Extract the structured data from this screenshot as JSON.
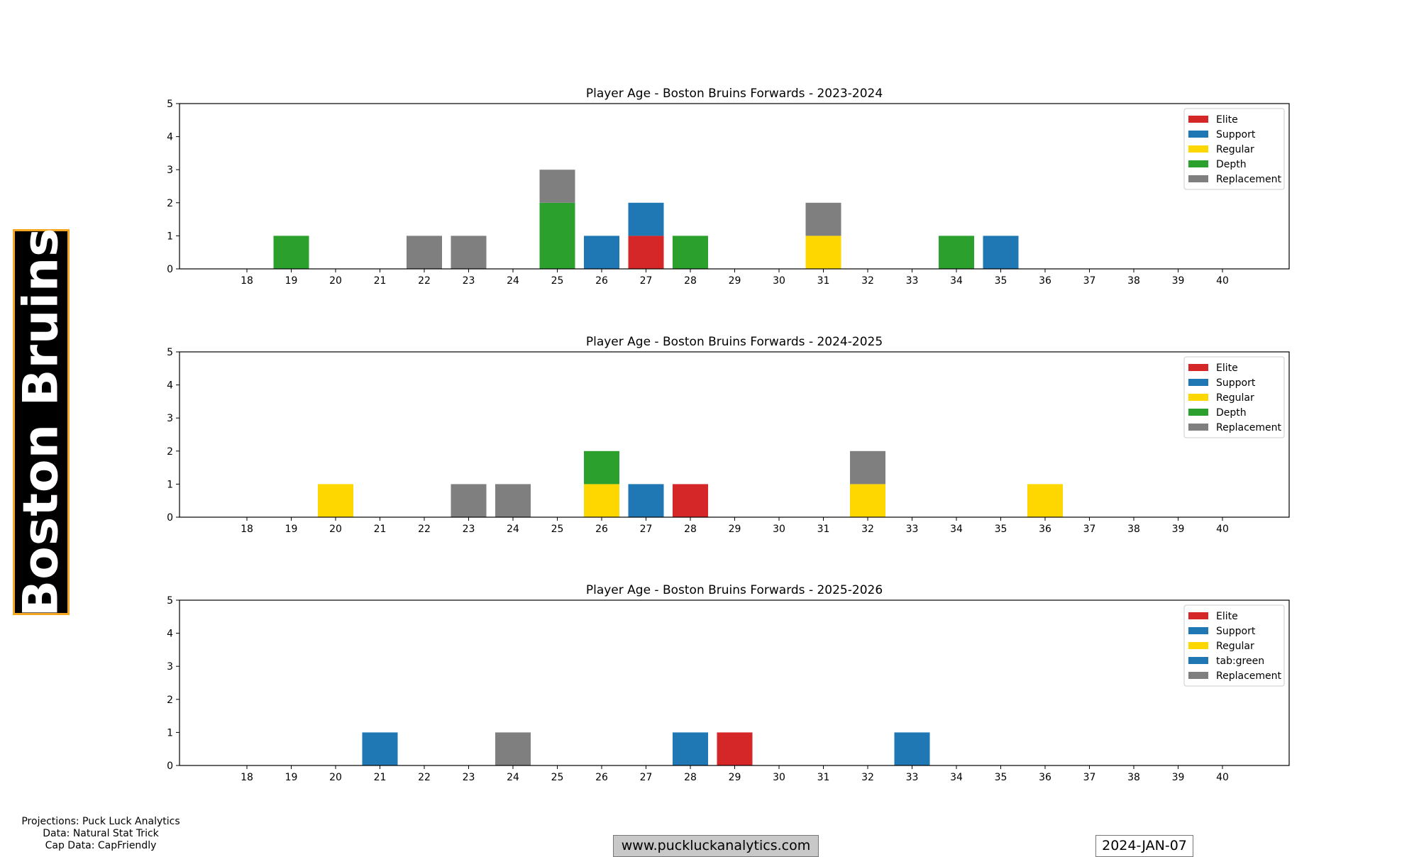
{
  "team_name": "Boston Bruins",
  "footer": {
    "projections": "Projections: Puck Luck Analytics",
    "data_source": "Data: Natural Stat Trick",
    "cap_data": "Cap Data: CapFriendly",
    "website": "www.puckluckanalytics.com",
    "date": "2024-JAN-07"
  },
  "chart_data": [
    {
      "type": "bar",
      "stacked": true,
      "title": "Player Age - Boston Bruins Forwards - 2023-2024",
      "xlabel": "",
      "ylabel": "",
      "categories": [
        18,
        19,
        20,
        21,
        22,
        23,
        24,
        25,
        26,
        27,
        28,
        29,
        30,
        31,
        32,
        33,
        34,
        35,
        36,
        37,
        38,
        39,
        40
      ],
      "ylim": [
        0,
        5
      ],
      "yticks": [
        0,
        1,
        2,
        3,
        4,
        5
      ],
      "legend_position": "top-right",
      "series": [
        {
          "name": "Elite",
          "color": "#d62728",
          "values": [
            0,
            0,
            0,
            0,
            0,
            0,
            0,
            0,
            0,
            1,
            0,
            0,
            0,
            0,
            0,
            0,
            0,
            0,
            0,
            0,
            0,
            0,
            0
          ]
        },
        {
          "name": "Support",
          "color": "#1f77b4",
          "values": [
            0,
            0,
            0,
            0,
            0,
            0,
            0,
            0,
            1,
            1,
            0,
            0,
            0,
            0,
            0,
            0,
            0,
            1,
            0,
            0,
            0,
            0,
            0
          ]
        },
        {
          "name": "Regular",
          "color": "#ffd700",
          "values": [
            0,
            0,
            0,
            0,
            0,
            0,
            0,
            0,
            0,
            0,
            0,
            0,
            0,
            1,
            0,
            0,
            0,
            0,
            0,
            0,
            0,
            0,
            0
          ]
        },
        {
          "name": "Depth",
          "color": "#2ca02c",
          "values": [
            0,
            1,
            0,
            0,
            0,
            0,
            0,
            2,
            0,
            0,
            1,
            0,
            0,
            0,
            0,
            0,
            1,
            0,
            0,
            0,
            0,
            0,
            0
          ]
        },
        {
          "name": "Replacement",
          "color": "#7f7f7f",
          "values": [
            0,
            0,
            0,
            0,
            1,
            1,
            0,
            1,
            0,
            0,
            0,
            0,
            0,
            1,
            0,
            0,
            0,
            0,
            0,
            0,
            0,
            0,
            0
          ]
        }
      ]
    },
    {
      "type": "bar",
      "stacked": true,
      "title": "Player Age - Boston Bruins Forwards - 2024-2025",
      "xlabel": "",
      "ylabel": "",
      "categories": [
        18,
        19,
        20,
        21,
        22,
        23,
        24,
        25,
        26,
        27,
        28,
        29,
        30,
        31,
        32,
        33,
        34,
        35,
        36,
        37,
        38,
        39,
        40
      ],
      "ylim": [
        0,
        5
      ],
      "yticks": [
        0,
        1,
        2,
        3,
        4,
        5
      ],
      "legend_position": "top-right",
      "series": [
        {
          "name": "Elite",
          "color": "#d62728",
          "values": [
            0,
            0,
            0,
            0,
            0,
            0,
            0,
            0,
            0,
            0,
            1,
            0,
            0,
            0,
            0,
            0,
            0,
            0,
            0,
            0,
            0,
            0,
            0
          ]
        },
        {
          "name": "Support",
          "color": "#1f77b4",
          "values": [
            0,
            0,
            0,
            0,
            0,
            0,
            0,
            0,
            0,
            1,
            0,
            0,
            0,
            0,
            0,
            0,
            0,
            0,
            0,
            0,
            0,
            0,
            0
          ]
        },
        {
          "name": "Regular",
          "color": "#ffd700",
          "values": [
            0,
            0,
            1,
            0,
            0,
            0,
            0,
            0,
            1,
            0,
            0,
            0,
            0,
            0,
            1,
            0,
            0,
            0,
            1,
            0,
            0,
            0,
            0
          ]
        },
        {
          "name": "Depth",
          "color": "#2ca02c",
          "values": [
            0,
            0,
            0,
            0,
            0,
            0,
            0,
            0,
            1,
            0,
            0,
            0,
            0,
            0,
            0,
            0,
            0,
            0,
            0,
            0,
            0,
            0,
            0
          ]
        },
        {
          "name": "Replacement",
          "color": "#7f7f7f",
          "values": [
            0,
            0,
            0,
            0,
            0,
            1,
            1,
            0,
            0,
            0,
            0,
            0,
            0,
            0,
            1,
            0,
            0,
            0,
            0,
            0,
            0,
            0,
            0
          ]
        }
      ]
    },
    {
      "type": "bar",
      "stacked": true,
      "title": "Player Age - Boston Bruins Forwards - 2025-2026",
      "xlabel": "",
      "ylabel": "",
      "categories": [
        18,
        19,
        20,
        21,
        22,
        23,
        24,
        25,
        26,
        27,
        28,
        29,
        30,
        31,
        32,
        33,
        34,
        35,
        36,
        37,
        38,
        39,
        40
      ],
      "ylim": [
        0,
        5
      ],
      "yticks": [
        0,
        1,
        2,
        3,
        4,
        5
      ],
      "legend_position": "top-right",
      "series": [
        {
          "name": "Elite",
          "color": "#d62728",
          "values": [
            0,
            0,
            0,
            0,
            0,
            0,
            0,
            0,
            0,
            0,
            0,
            1,
            0,
            0,
            0,
            0,
            0,
            0,
            0,
            0,
            0,
            0,
            0
          ]
        },
        {
          "name": "Support",
          "color": "#1f77b4",
          "values": [
            0,
            0,
            0,
            1,
            0,
            0,
            0,
            0,
            0,
            0,
            1,
            0,
            0,
            0,
            0,
            1,
            0,
            0,
            0,
            0,
            0,
            0,
            0
          ]
        },
        {
          "name": "Regular",
          "color": "#ffd700",
          "values": [
            0,
            0,
            0,
            0,
            0,
            0,
            0,
            0,
            0,
            0,
            0,
            0,
            0,
            0,
            0,
            0,
            0,
            0,
            0,
            0,
            0,
            0,
            0
          ]
        },
        {
          "name": "tab:green",
          "color": "#1f77b4",
          "values": [
            0,
            0,
            0,
            0,
            0,
            0,
            0,
            0,
            0,
            0,
            0,
            0,
            0,
            0,
            0,
            0,
            0,
            0,
            0,
            0,
            0,
            0,
            0
          ]
        },
        {
          "name": "Replacement",
          "color": "#7f7f7f",
          "values": [
            0,
            0,
            0,
            0,
            0,
            0,
            1,
            0,
            0,
            0,
            0,
            0,
            0,
            0,
            0,
            0,
            0,
            0,
            0,
            0,
            0,
            0,
            0
          ]
        }
      ]
    }
  ]
}
